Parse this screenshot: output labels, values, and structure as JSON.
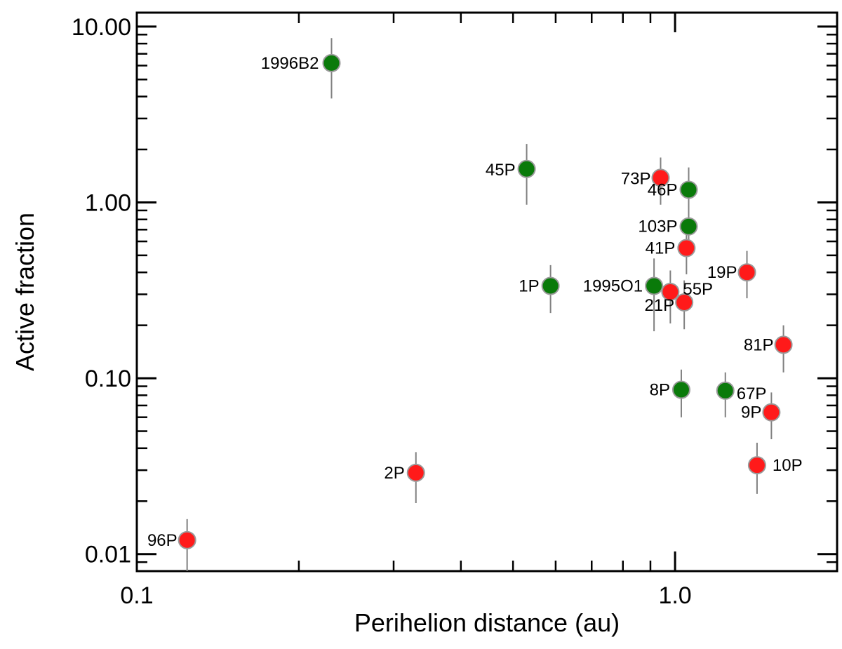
{
  "chart_data": {
    "type": "scatter",
    "title": "",
    "xlabel": "Perihelion distance (au)",
    "ylabel": "Active fraction",
    "xscale": "log",
    "yscale": "log",
    "xlim": [
      0.1,
      2.0
    ],
    "ylim": [
      0.008,
      12.0
    ],
    "xticks": [
      {
        "value": 0.1,
        "label": "0.1"
      },
      {
        "value": 1.0,
        "label": "1.0"
      }
    ],
    "yticks": [
      {
        "value": 0.01,
        "label": "0.01"
      },
      {
        "value": 0.1,
        "label": "0.10"
      },
      {
        "value": 1.0,
        "label": "1.00"
      },
      {
        "value": 10.0,
        "label": "10.00"
      }
    ],
    "series": [
      {
        "name": "green",
        "color": "#0a7a0a",
        "points": [
          {
            "label": "1996B2",
            "x": 0.23,
            "y": 6.2,
            "ylo": 3.9,
            "yhi": 8.6
          },
          {
            "label": "45P",
            "x": 0.53,
            "y": 1.55,
            "ylo": 0.97,
            "yhi": 2.15
          },
          {
            "label": "46P",
            "x": 1.06,
            "y": 1.18,
            "ylo": 0.82,
            "yhi": 1.58
          },
          {
            "label": "103P",
            "x": 1.06,
            "y": 0.73,
            "ylo": 0.5,
            "yhi": 0.98
          },
          {
            "label": "1P",
            "x": 0.587,
            "y": 0.335,
            "ylo": 0.235,
            "yhi": 0.44
          },
          {
            "label": "1995O1",
            "x": 0.914,
            "y": 0.335,
            "ylo": 0.185,
            "yhi": 0.48
          },
          {
            "label": "8P",
            "x": 1.027,
            "y": 0.086,
            "ylo": 0.06,
            "yhi": 0.112
          },
          {
            "label": "67P",
            "x": 1.24,
            "y": 0.085,
            "ylo": 0.06,
            "yhi": 0.108
          }
        ]
      },
      {
        "name": "red",
        "color": "#ff1a1a",
        "points": [
          {
            "label": "73P",
            "x": 0.94,
            "y": 1.38,
            "ylo": 0.97,
            "yhi": 1.8
          },
          {
            "label": "41P",
            "x": 1.05,
            "y": 0.55,
            "ylo": 0.39,
            "yhi": 0.7
          },
          {
            "label": "19P",
            "x": 1.36,
            "y": 0.4,
            "ylo": 0.285,
            "yhi": 0.53
          },
          {
            "label": "55P",
            "x": 0.98,
            "y": 0.31,
            "ylo": 0.205,
            "yhi": 0.41
          },
          {
            "label": "21P",
            "x": 1.04,
            "y": 0.27,
            "ylo": 0.19,
            "yhi": 0.36
          },
          {
            "label": "81P",
            "x": 1.59,
            "y": 0.155,
            "ylo": 0.108,
            "yhi": 0.2
          },
          {
            "label": "9P",
            "x": 1.51,
            "y": 0.064,
            "ylo": 0.045,
            "yhi": 0.083
          },
          {
            "label": "10P",
            "x": 1.42,
            "y": 0.032,
            "ylo": 0.022,
            "yhi": 0.043
          },
          {
            "label": "2P",
            "x": 0.33,
            "y": 0.029,
            "ylo": 0.0195,
            "yhi": 0.038
          },
          {
            "label": "96P",
            "x": 0.124,
            "y": 0.012,
            "ylo": 0.008,
            "yhi": 0.0158
          }
        ]
      }
    ]
  }
}
